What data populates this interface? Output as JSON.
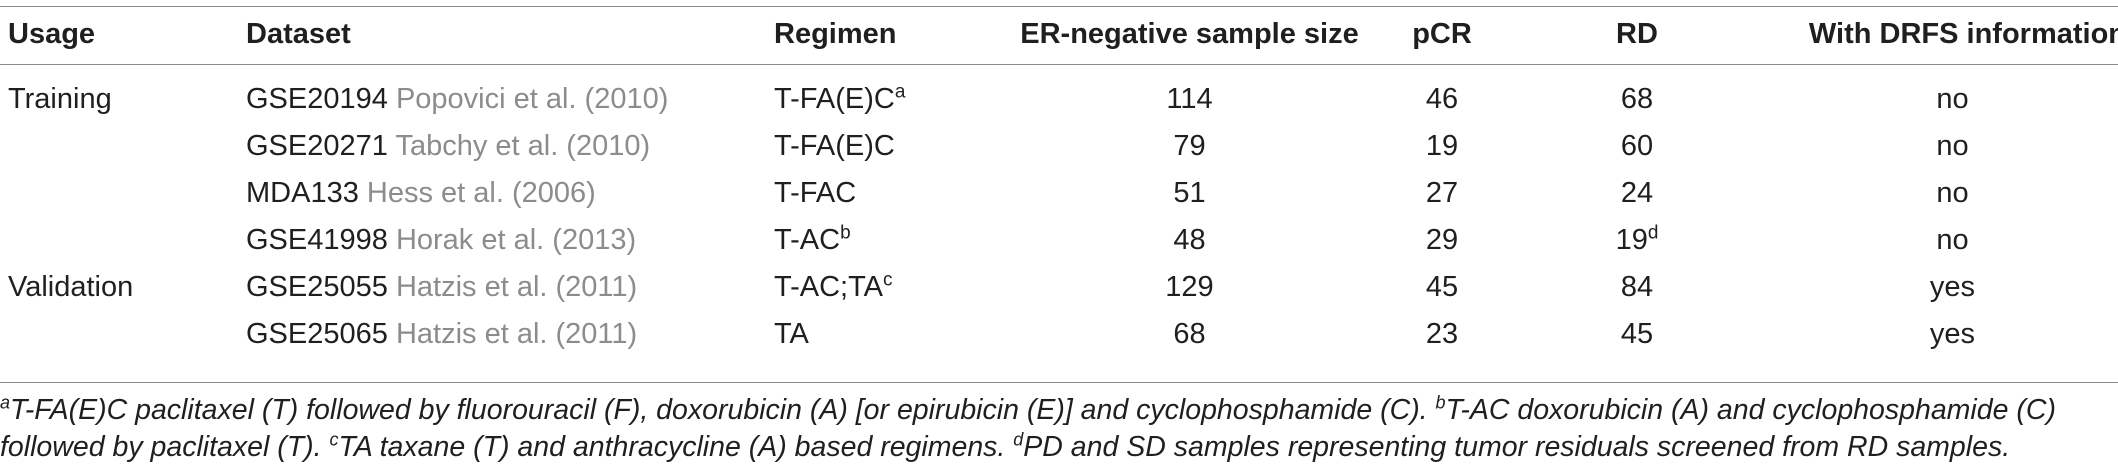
{
  "table": {
    "headers": {
      "usage": "Usage",
      "dataset": "Dataset",
      "regimen": "Regimen",
      "sample_size": "ER-negative sample size",
      "pcr": "pCR",
      "rd": "RD",
      "drfs": "With DRFS information"
    },
    "rows": [
      {
        "usage": "Training",
        "dataset_id": "GSE20194",
        "dataset_ref": "Popovici et al. (2010)",
        "regimen": "T-FA(E)C",
        "regimen_sup": "a",
        "sample_size": "114",
        "pcr": "46",
        "rd": "68",
        "rd_sup": "",
        "drfs": "no"
      },
      {
        "usage": "",
        "dataset_id": "GSE20271",
        "dataset_ref": "Tabchy et al. (2010)",
        "regimen": "T-FA(E)C",
        "regimen_sup": "",
        "sample_size": "79",
        "pcr": "19",
        "rd": "60",
        "rd_sup": "",
        "drfs": "no"
      },
      {
        "usage": "",
        "dataset_id": "MDA133",
        "dataset_ref": "Hess et al. (2006)",
        "regimen": "T-FAC",
        "regimen_sup": "",
        "sample_size": "51",
        "pcr": "27",
        "rd": "24",
        "rd_sup": "",
        "drfs": "no"
      },
      {
        "usage": "",
        "dataset_id": "GSE41998",
        "dataset_ref": "Horak et al. (2013)",
        "regimen": "T-AC",
        "regimen_sup": "b",
        "sample_size": "48",
        "pcr": "29",
        "rd": "19",
        "rd_sup": "d",
        "drfs": "no"
      },
      {
        "usage": "Validation",
        "dataset_id": "GSE25055",
        "dataset_ref": "Hatzis et al. (2011)",
        "regimen": "T-AC;TA",
        "regimen_sup": "c",
        "sample_size": "129",
        "pcr": "45",
        "rd": "84",
        "rd_sup": "",
        "drfs": "yes"
      },
      {
        "usage": "",
        "dataset_id": "GSE25065",
        "dataset_ref": "Hatzis et al. (2011)",
        "regimen": "TA",
        "regimen_sup": "",
        "sample_size": "68",
        "pcr": "23",
        "rd": "45",
        "rd_sup": "",
        "drfs": "yes"
      }
    ]
  },
  "footnotes": [
    {
      "mark": "a",
      "text": "T-FA(E)C paclitaxel (T) followed by fluorouracil (F), doxorubicin (A) [or epirubicin (E)] and cyclophosphamide (C). "
    },
    {
      "mark": "b",
      "text": "T-AC doxorubicin (A) and cyclophosphamide (C) followed by paclitaxel (T). "
    },
    {
      "mark": "c",
      "text": "TA taxane (T) and anthracycline (A) based regimens. "
    },
    {
      "mark": "d",
      "text": "PD and SD samples representing tumor residuals screened from RD samples."
    }
  ]
}
